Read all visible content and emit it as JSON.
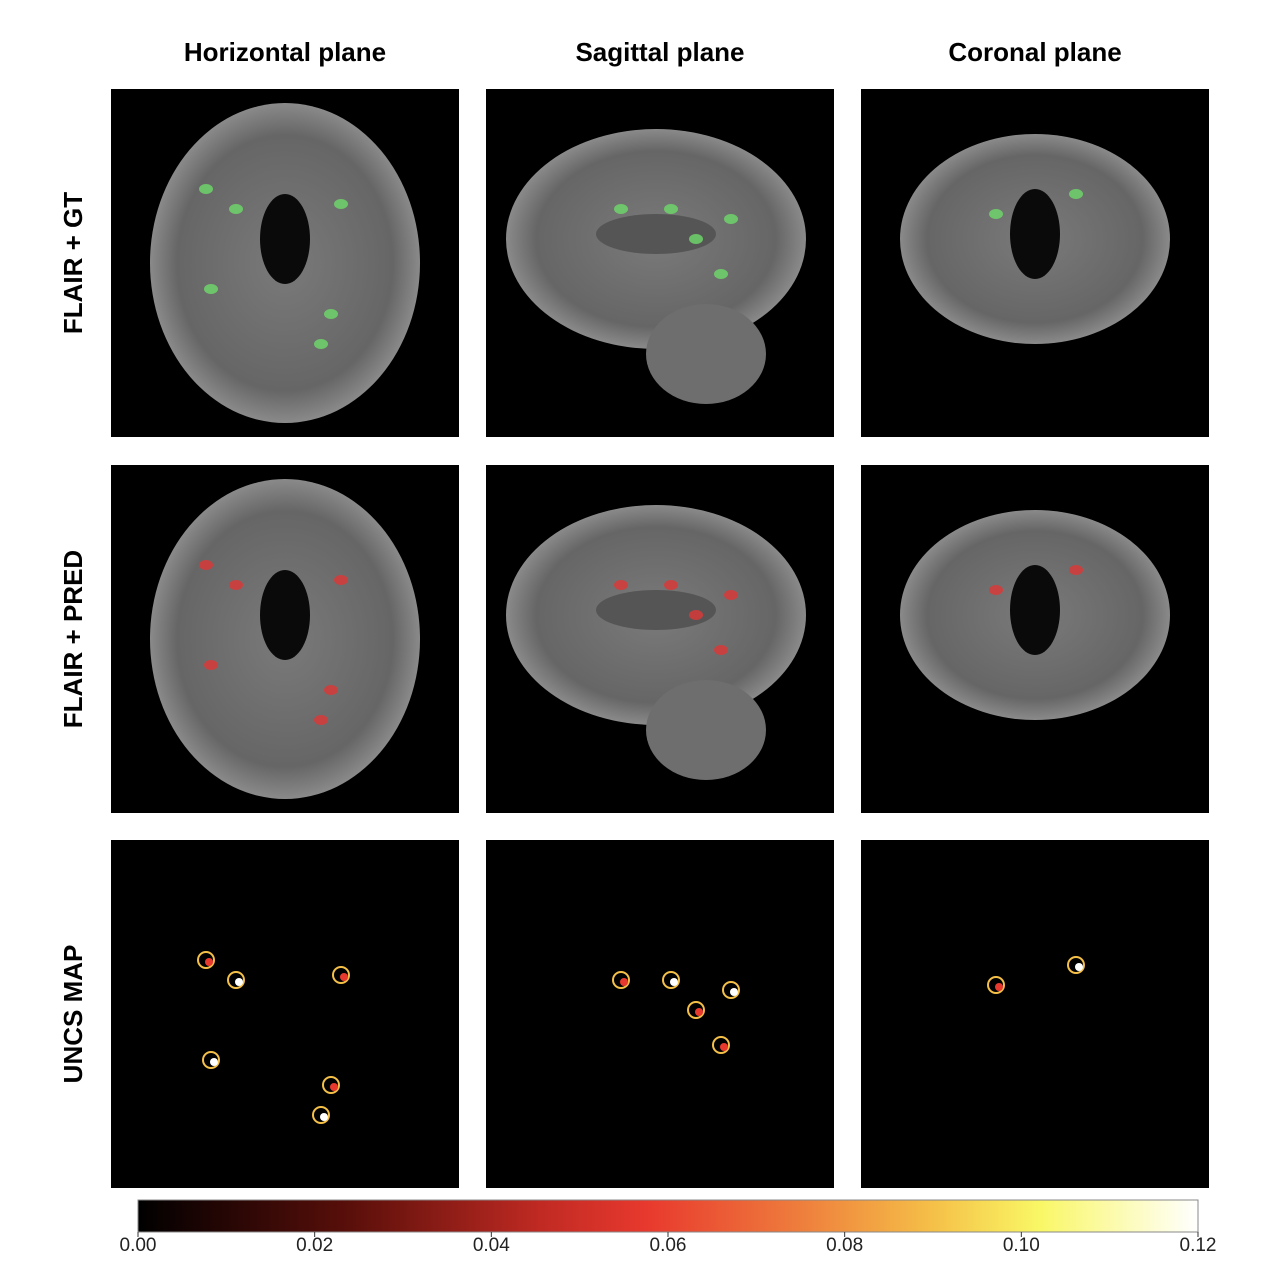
{
  "figure": {
    "columns": [
      "Horizontal plane",
      "Sagittal plane",
      "Coronal plane"
    ],
    "rows": [
      "FLAIR + GT",
      "FLAIR + PRED",
      "UNCS MAP"
    ],
    "colorbar": {
      "lim": [
        0,
        0.12
      ],
      "ticks": [
        {
          "value": 0,
          "label": "0.00"
        },
        {
          "value": 0.02,
          "label": "0.02"
        },
        {
          "value": 0.04,
          "label": "0.04"
        },
        {
          "value": 0.06,
          "label": "0.06"
        },
        {
          "value": 0.08,
          "label": "0.08"
        },
        {
          "value": 0.1,
          "label": "0.10"
        },
        {
          "value": 0.12,
          "label": "0.12"
        }
      ]
    }
  }
}
